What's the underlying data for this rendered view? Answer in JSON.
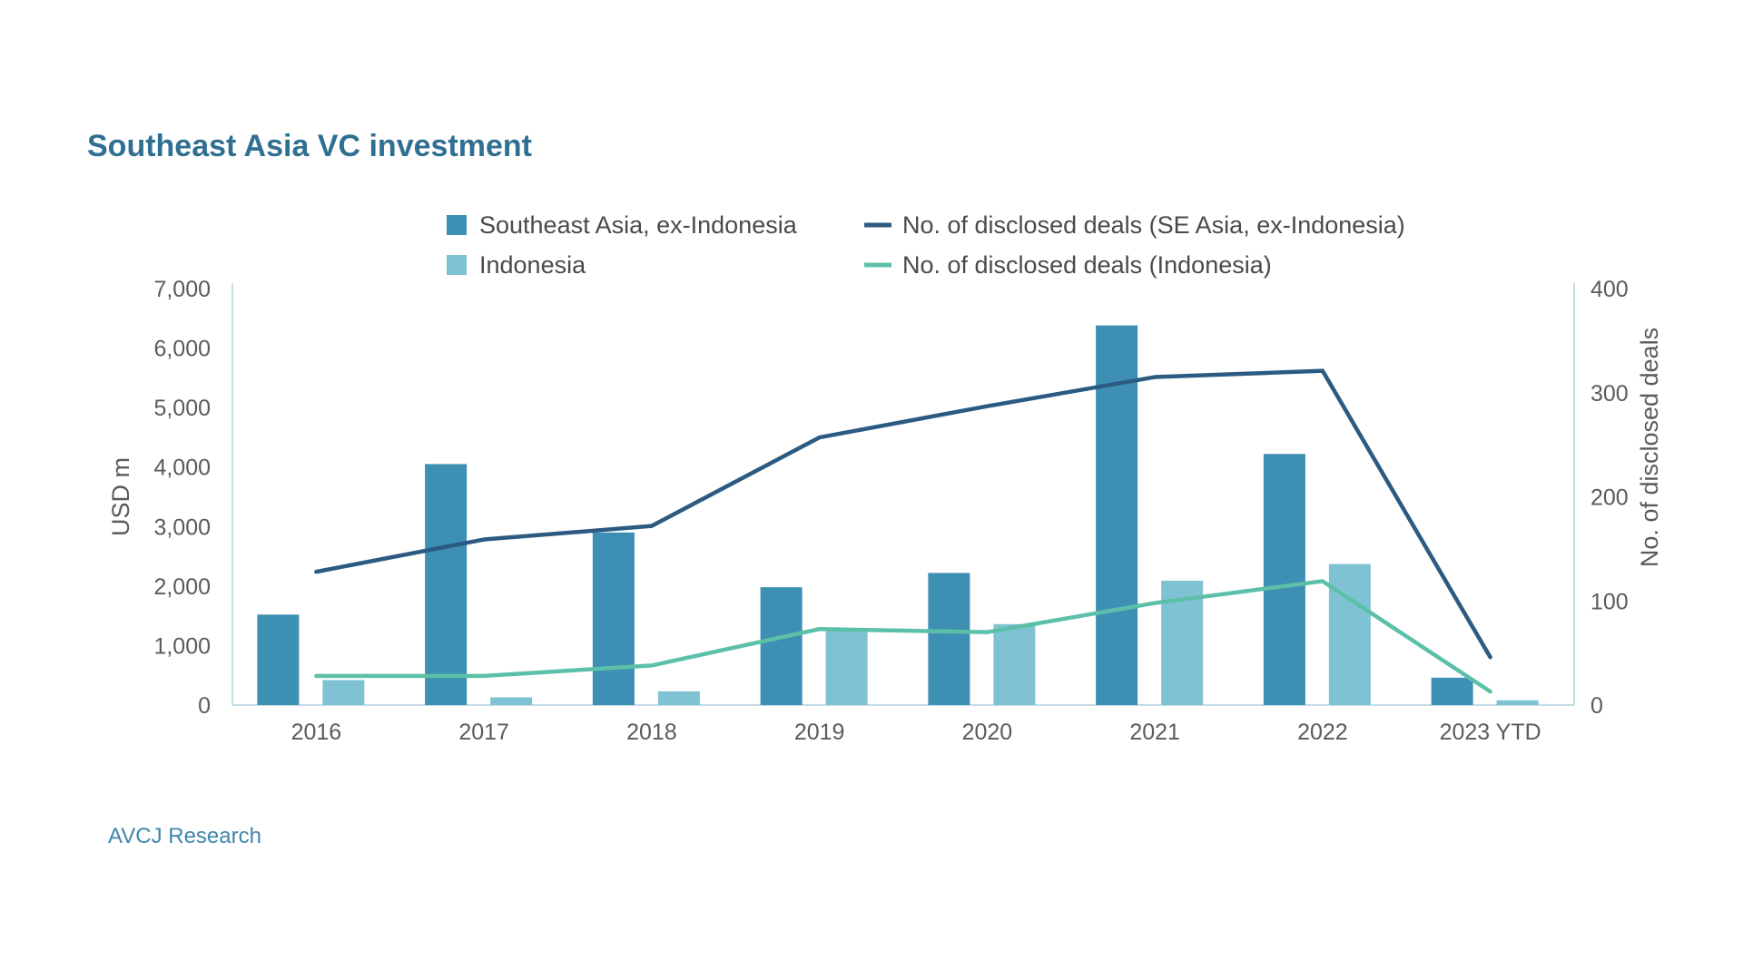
{
  "chart_data": {
    "type": "bar",
    "title": "Southeast Asia VC investment",
    "source": "AVCJ Research",
    "categories": [
      "2016",
      "2017",
      "2018",
      "2019",
      "2020",
      "2021",
      "2022",
      "2023 YTD"
    ],
    "y_left": {
      "label": "USD m",
      "range": [
        0,
        7000
      ],
      "ticks": [
        "0",
        "1,000",
        "2,000",
        "3,000",
        "4,000",
        "5,000",
        "6,000",
        "7,000"
      ]
    },
    "y_right": {
      "label": "No. of disclosed deals",
      "range": [
        0,
        400
      ],
      "ticks": [
        "0",
        "100",
        "200",
        "300",
        "400"
      ]
    },
    "series": [
      {
        "name": "Southeast Asia, ex-Indonesia",
        "kind": "bar",
        "axis": "left",
        "color": "#3d8fb3",
        "values": [
          1520,
          4050,
          2900,
          1980,
          2220,
          6380,
          4220,
          460
        ]
      },
      {
        "name": "Indonesia",
        "kind": "bar",
        "axis": "left",
        "color": "#7ec2d3",
        "values": [
          420,
          130,
          230,
          1290,
          1360,
          2090,
          2370,
          80
        ]
      },
      {
        "name": "No. of disclosed deals (SE Asia, ex-Indonesia)",
        "kind": "line",
        "axis": "right",
        "color": "#2b5a82",
        "values": [
          128,
          159,
          172,
          257,
          287,
          315,
          321,
          46
        ]
      },
      {
        "name": "No. of disclosed deals (Indonesia)",
        "kind": "line",
        "axis": "right",
        "color": "#5cc0a9",
        "values": [
          28,
          28,
          38,
          73,
          70,
          98,
          119,
          13
        ]
      }
    ],
    "grid": false,
    "legend_position": "top"
  }
}
